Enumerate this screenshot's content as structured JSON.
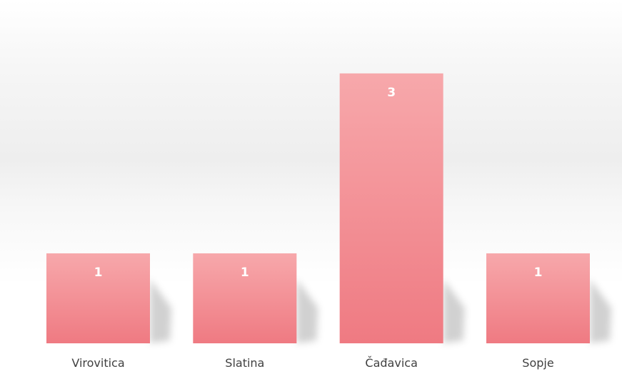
{
  "chart_data": {
    "type": "bar",
    "categories": [
      "Virovitica",
      "Slatina",
      "Čađavica",
      "Sopje"
    ],
    "values": [
      1,
      1,
      3,
      1
    ],
    "ylim": [
      0,
      3.3
    ],
    "grid": false,
    "legend": "none",
    "data_labels": true,
    "colors": {
      "bar_top": "#f7a8ab",
      "bar_bottom": "#ef7a82",
      "label": "#ffffff",
      "category_text": "#404040"
    }
  }
}
